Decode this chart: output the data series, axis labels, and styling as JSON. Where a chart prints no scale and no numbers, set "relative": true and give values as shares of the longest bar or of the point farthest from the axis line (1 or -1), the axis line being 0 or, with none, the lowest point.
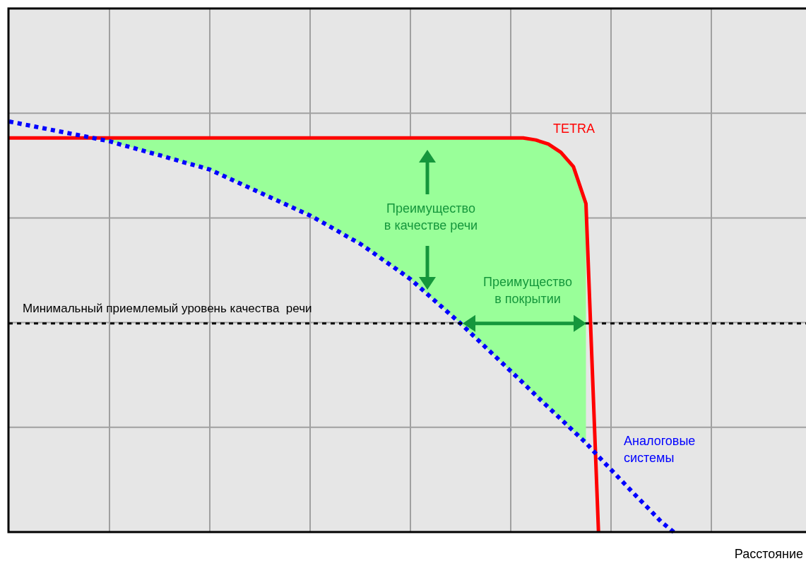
{
  "chart_data": {
    "type": "line",
    "relative": true,
    "xlabel": "Расстояние",
    "grid": true,
    "categories": [
      null,
      null,
      null,
      null,
      null,
      null,
      null,
      null,
      null,
      null,
      null,
      null,
      null,
      null,
      null,
      null,
      null,
      null,
      null,
      null,
      null,
      null,
      null,
      null,
      null,
      null,
      null,
      null,
      null,
      null,
      null,
      null,
      null,
      null,
      null,
      null,
      null,
      null,
      null,
      null,
      null,
      null,
      null,
      null,
      null,
      null,
      null,
      null,
      null,
      null,
      null,
      null,
      null,
      null,
      null,
      null,
      null,
      null,
      null,
      null,
      null,
      null,
      null,
      null
    ],
    "series": [
      {
        "name": "TETRA",
        "color": "#ff0000",
        "line_style": "solid",
        "values": [
          0.96,
          0.96,
          0.96,
          0.96,
          0.96,
          0.96,
          0.96,
          0.96,
          0.96,
          0.96,
          0.96,
          0.96,
          0.96,
          0.96,
          0.96,
          0.96,
          0.96,
          0.96,
          0.96,
          0.96,
          0.96,
          0.96,
          0.96,
          0.96,
          0.96,
          0.96,
          0.96,
          0.96,
          0.96,
          0.96,
          0.96,
          0.96,
          0.96,
          0.96,
          0.96,
          0.96,
          0.96,
          0.96,
          0.96,
          0.96,
          0.96,
          0.96,
          0.955,
          0.945,
          0.925,
          0.89,
          0.8,
          0,
          null,
          null,
          null,
          null,
          null,
          null,
          null,
          null,
          null,
          null,
          null,
          null,
          null,
          null,
          null,
          null
        ]
      },
      {
        "name": "Аналоговые системы",
        "color": "#0000ff",
        "line_style": "dotted",
        "values": [
          1,
          0.994,
          0.988,
          0.982,
          0.976,
          0.97,
          0.964,
          0.958,
          0.952,
          0.943,
          0.935,
          0.926,
          0.918,
          0.909,
          0.9,
          0.892,
          0.883,
          0.869,
          0.855,
          0.841,
          0.827,
          0.813,
          0.799,
          0.785,
          0.771,
          0.754,
          0.737,
          0.719,
          0.702,
          0.681,
          0.659,
          0.638,
          0.616,
          0.589,
          0.562,
          0.535,
          0.508,
          0.479,
          0.45,
          0.421,
          0.392,
          0.363,
          0.333,
          0.304,
          0.275,
          0.246,
          0.217,
          0.184,
          0.152,
          0.12,
          0.088,
          0.057,
          0.025,
          0,
          null,
          null,
          null,
          null,
          null,
          null,
          null,
          null,
          null,
          null
        ]
      }
    ],
    "ref_lines": [
      {
        "axis": "y",
        "value": 0.508,
        "label": "Минимальный приемлемый уровень качества  речи",
        "color": "#000000",
        "line_style": "dotted"
      }
    ],
    "annotations": [
      "Преимущество в качестве речи",
      "Преимущество в покрытии"
    ]
  }
}
